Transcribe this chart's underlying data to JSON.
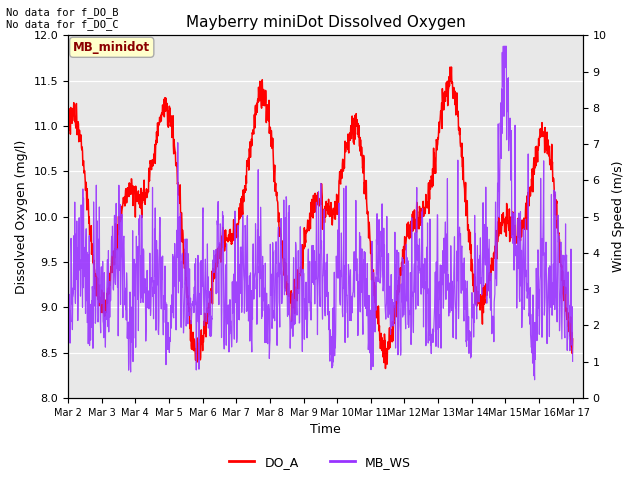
{
  "title": "Mayberry miniDot Dissolved Oxygen",
  "xlabel": "Time",
  "ylabel_left": "Dissolved Oxygen (mg/l)",
  "ylabel_right": "Wind Speed (m/s)",
  "annotation_line1": "No data for f_DO_B",
  "annotation_line2": "No data for f_DO_C",
  "legend_label": "MB_minidot",
  "legend_do": "DO_A",
  "legend_ws": "MB_WS",
  "do_color": "#ff0000",
  "ws_color": "#9933ff",
  "fig_bg_color": "#ffffff",
  "plot_bg_color": "#e8e8e8",
  "ylim_left": [
    8.0,
    12.0
  ],
  "ylim_right": [
    0.0,
    10.0
  ],
  "yticks_left": [
    8.0,
    8.5,
    9.0,
    9.5,
    10.0,
    10.5,
    11.0,
    11.5,
    12.0
  ],
  "yticks_right": [
    0.0,
    1.0,
    2.0,
    3.0,
    4.0,
    5.0,
    6.0,
    7.0,
    8.0,
    9.0,
    10.0
  ],
  "x_labels": [
    "Mar 2",
    "Mar 3",
    "Mar 4",
    "Mar 5",
    "Mar 6",
    "Mar 7",
    "Mar 8",
    "Mar 9",
    "Mar 10",
    "Mar 11",
    "Mar 12",
    "Mar 13",
    "Mar 14",
    "Mar 15",
    "Mar 16",
    "Mar 17"
  ],
  "num_points": 1500,
  "do_linewidth": 1.1,
  "ws_linewidth": 0.85
}
